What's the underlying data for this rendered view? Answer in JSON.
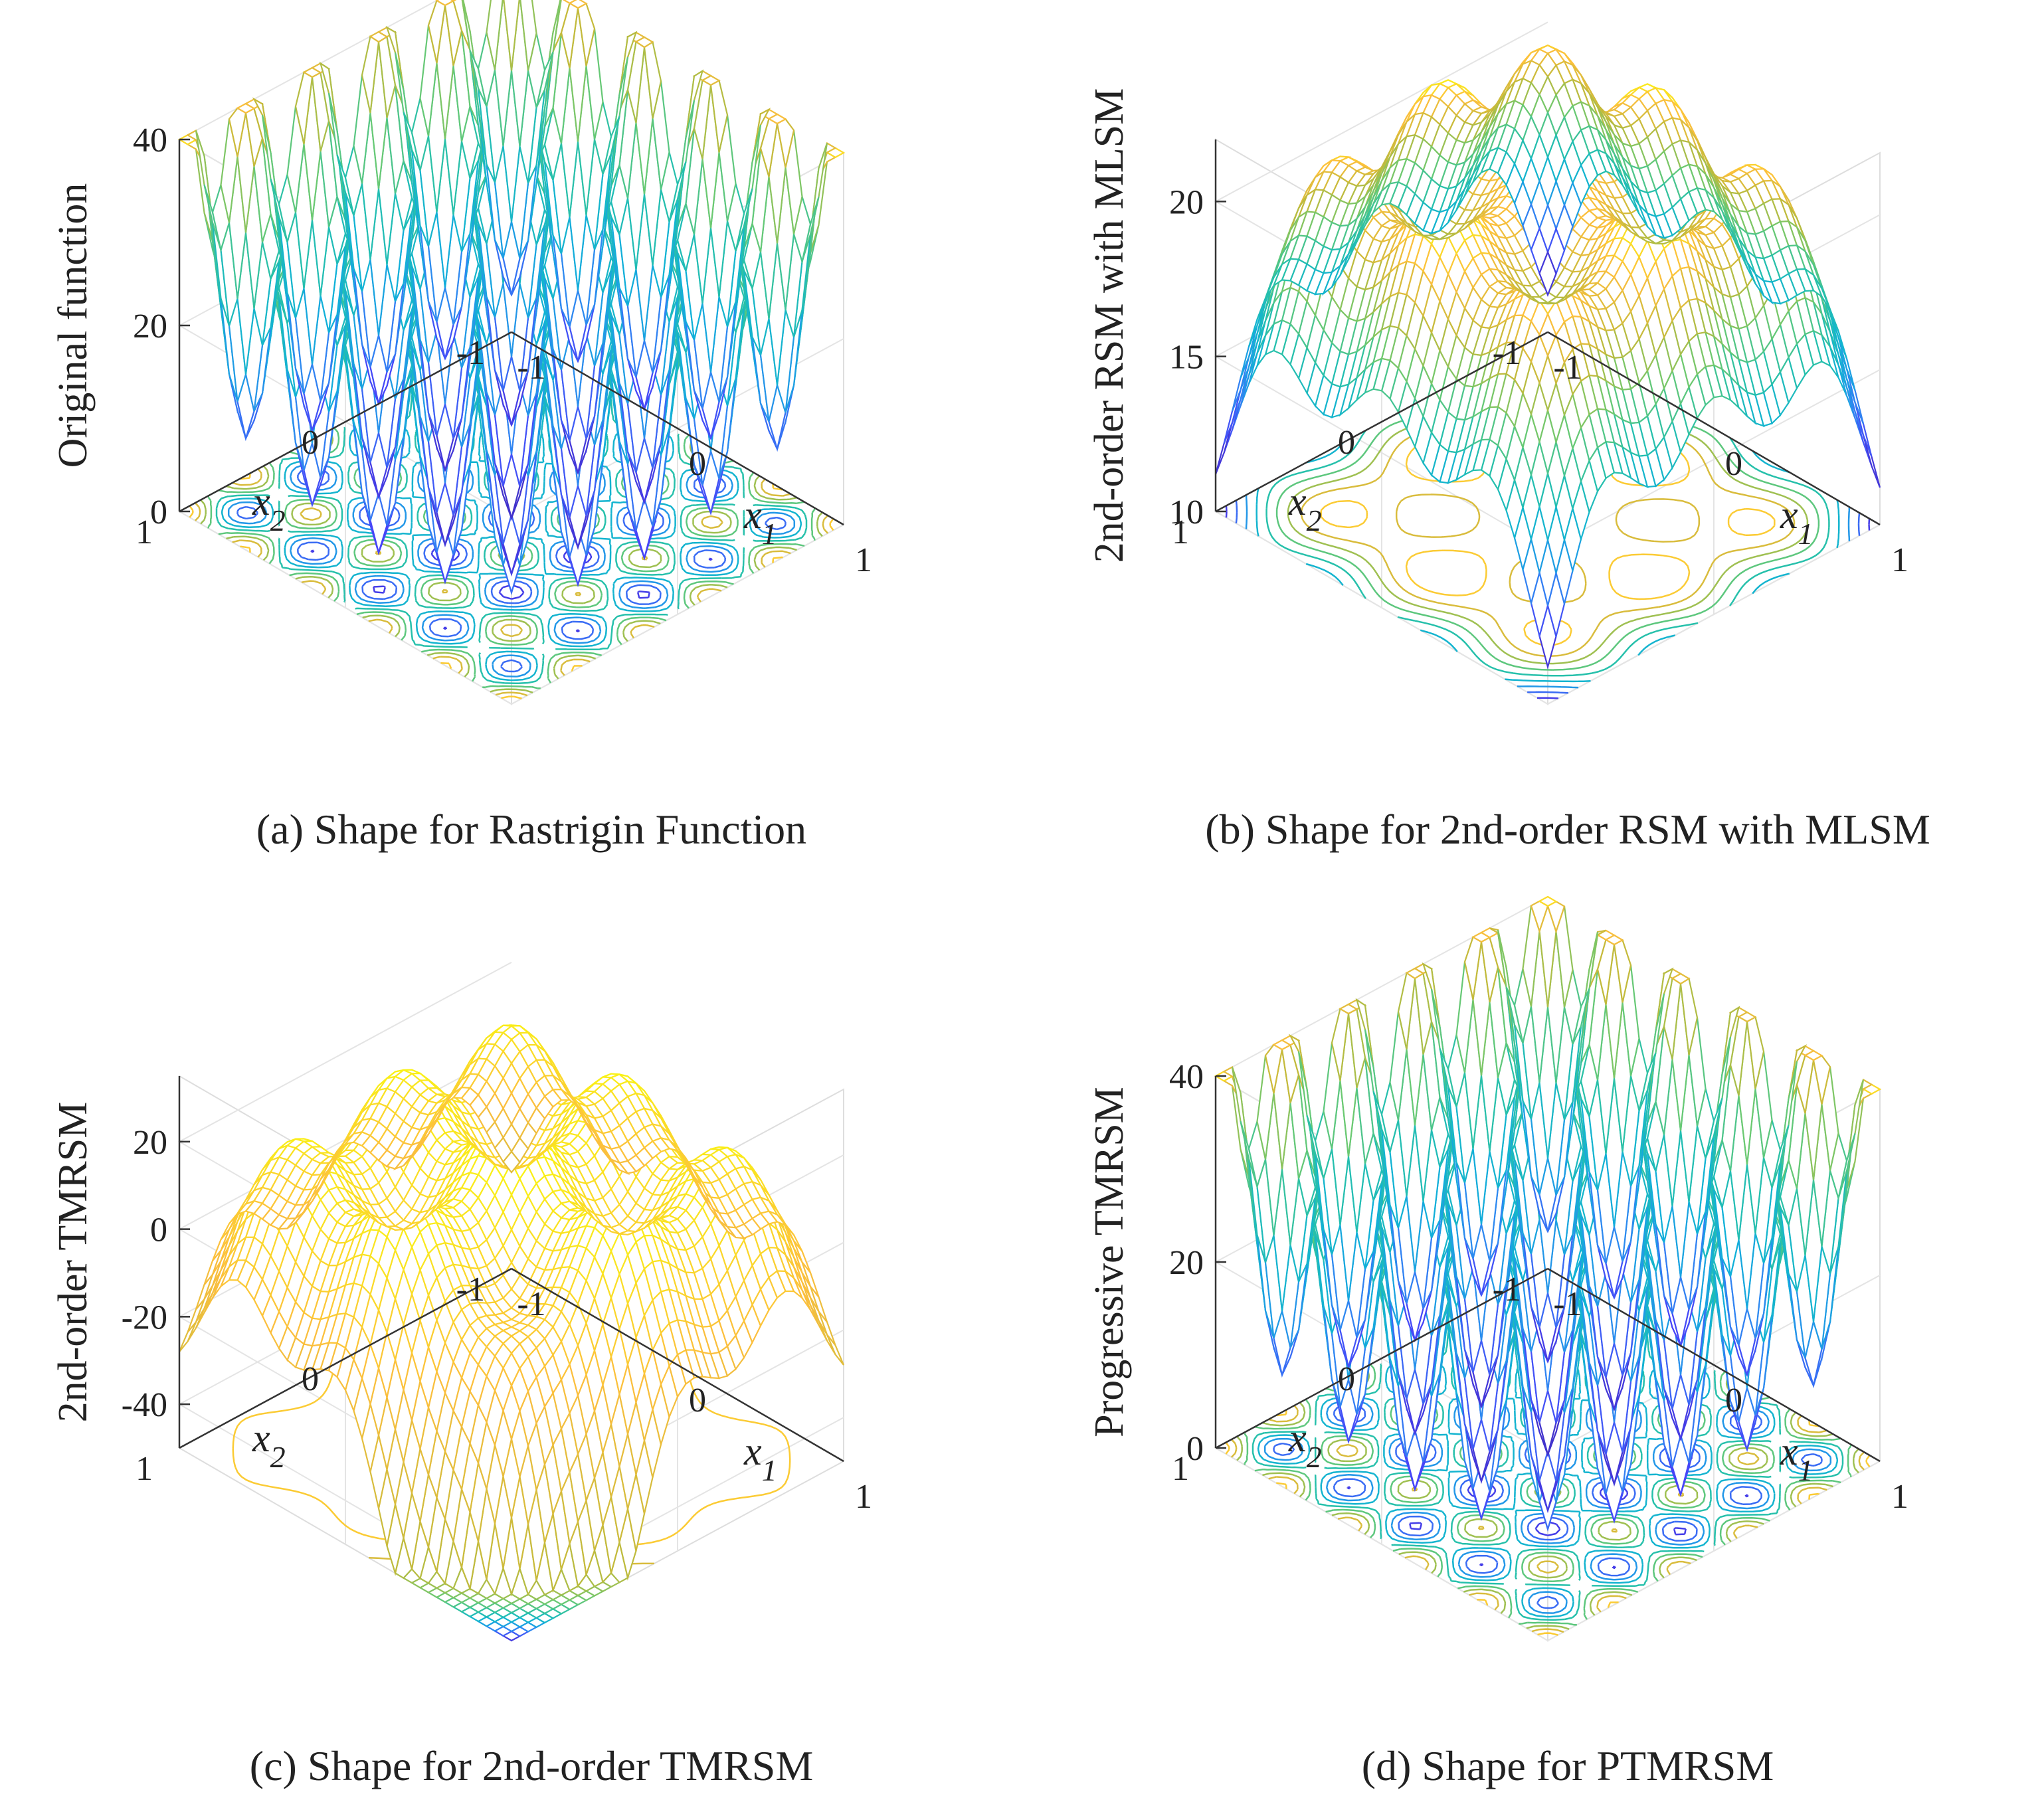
{
  "colormap": [
    "#3e26a8",
    "#4743f8",
    "#2f86f2",
    "#0fb1d8",
    "#26c0ab",
    "#6bc971",
    "#c2ba3b",
    "#fcbf3d",
    "#f9fb0e"
  ],
  "chart_data": [
    {
      "type": "surface",
      "title": "",
      "caption": "(a) Shape for Rastrigin Function",
      "xlabel": "x1",
      "ylabel": "x2",
      "zlabel": "Original function",
      "xlim": [
        -1,
        1
      ],
      "ylim": [
        -1,
        1
      ],
      "zlim": [
        0,
        40
      ],
      "xticks": [
        "-1",
        "0",
        "1"
      ],
      "yticks": [
        "-1",
        "0",
        "1"
      ],
      "zticks": [
        "0",
        "20",
        "40"
      ],
      "model": "rastrigin",
      "contour_at_floor": true,
      "grid": true
    },
    {
      "type": "surface",
      "title": "",
      "caption": "(b) Shape for 2nd-order RSM with MLSM",
      "xlabel": "x1",
      "ylabel": "x2",
      "zlabel": "2nd-order RSM with MLSM",
      "xlim": [
        -1,
        1
      ],
      "ylim": [
        -1,
        1
      ],
      "zlim": [
        10,
        22
      ],
      "xticks": [
        "-1",
        "0",
        "1"
      ],
      "yticks": [
        "-1",
        "0",
        "1"
      ],
      "zticks": [
        "10",
        "15",
        "20"
      ],
      "model": "mlsm",
      "contour_at_floor": true,
      "grid": true
    },
    {
      "type": "surface",
      "title": "",
      "caption": "(c) Shape for 2nd-order TMRSM",
      "xlabel": "x1",
      "ylabel": "x2",
      "zlabel": "2nd-order TMRSM",
      "xlim": [
        -1,
        1
      ],
      "ylim": [
        -1,
        1
      ],
      "zlim": [
        -50,
        35
      ],
      "xticks": [
        "-1",
        "0",
        "1"
      ],
      "yticks": [
        "-1",
        "0",
        "1"
      ],
      "zticks": [
        "-40",
        "-20",
        "0",
        "20"
      ],
      "model": "tmrsm",
      "contour_at_floor": true,
      "grid": true
    },
    {
      "type": "surface",
      "title": "",
      "caption": "(d) Shape for PTMRSM",
      "xlabel": "x1",
      "ylabel": "x2",
      "zlabel": "Progressive TMRSM",
      "xlim": [
        -1,
        1
      ],
      "ylim": [
        -1,
        1
      ],
      "zlim": [
        0,
        40
      ],
      "xticks": [
        "-1",
        "0",
        "1"
      ],
      "yticks": [
        "-1",
        "0",
        "1"
      ],
      "zticks": [
        "0",
        "20",
        "40"
      ],
      "model": "rastrigin",
      "contour_at_floor": true,
      "grid": true
    }
  ]
}
